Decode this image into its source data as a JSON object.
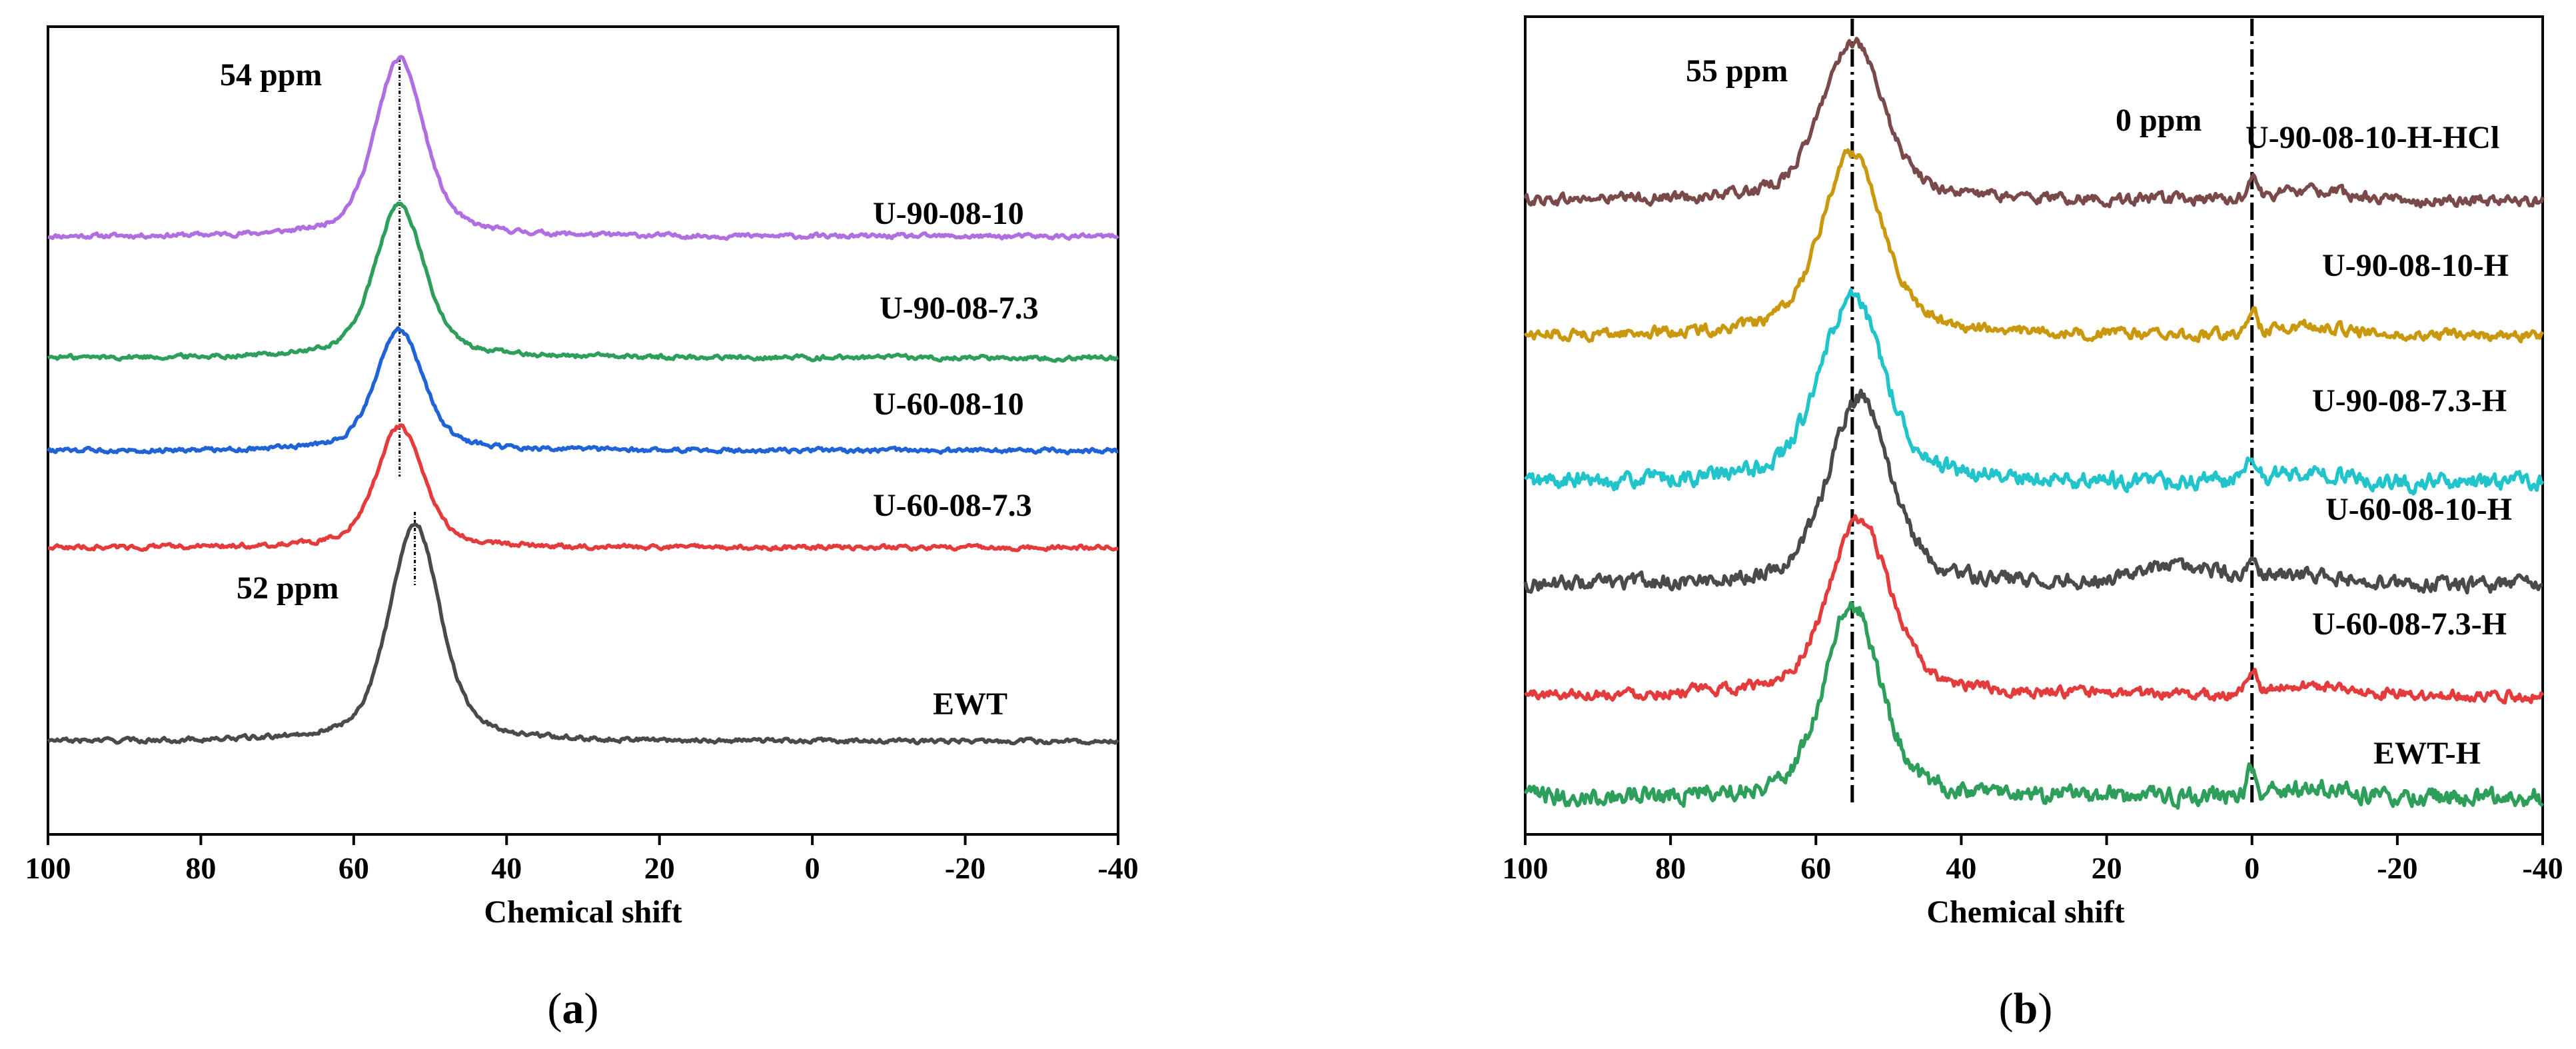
{
  "chart_data": [
    {
      "type": "line",
      "panel_label": "a",
      "xlabel": "Chemical shift",
      "ylabel": "",
      "xlim": [
        100,
        -40
      ],
      "xticks": [
        100,
        80,
        60,
        40,
        20,
        0,
        -20,
        -40
      ],
      "xtick_labels": [
        "100",
        "80",
        "60",
        "40",
        "20",
        "0",
        "-20",
        "-40"
      ],
      "grid": false,
      "annotations": [
        {
          "text": "54 ppm",
          "x": 54,
          "dashed": true
        },
        {
          "text": "52 ppm",
          "x": 52,
          "dashed": true
        }
      ],
      "series": [
        {
          "name": "U-90-08-10",
          "color": "#b06ee0",
          "peak_x": 54,
          "peak_width": 4.2,
          "baseline_level": 0.74,
          "peak_height": 0.22,
          "noise": 0.0025
        },
        {
          "name": "U-90-08-7.3",
          "color": "#2e9e5b",
          "peak_x": 54,
          "peak_width": 4.2,
          "baseline_level": 0.59,
          "peak_height": 0.19,
          "noise": 0.0025
        },
        {
          "name": "U-60-08-10",
          "color": "#1f63d6",
          "peak_x": 54,
          "peak_width": 4.0,
          "baseline_level": 0.475,
          "peak_height": 0.15,
          "noise": 0.0025
        },
        {
          "name": "U-60-08-7.3",
          "color": "#e43c3c",
          "peak_x": 54,
          "peak_width": 4.0,
          "baseline_level": 0.355,
          "peak_height": 0.15,
          "noise": 0.0025
        },
        {
          "name": "EWT",
          "color": "#4a4a4a",
          "peak_x": 52,
          "peak_width": 4.3,
          "baseline_level": 0.115,
          "peak_height": 0.27,
          "noise": 0.0025
        }
      ]
    },
    {
      "type": "line",
      "panel_label": "b",
      "xlabel": "Chemical shift",
      "ylabel": "",
      "xlim": [
        100,
        -40
      ],
      "xticks": [
        100,
        80,
        60,
        40,
        20,
        0,
        -20,
        -40
      ],
      "xtick_labels": [
        "100",
        "80",
        "60",
        "40",
        "20",
        "0",
        "-20",
        "-40"
      ],
      "grid": false,
      "annotations": [
        {
          "text": "55 ppm",
          "x": 55,
          "dashed": true
        },
        {
          "text": "0 ppm",
          "x": 0,
          "dashed": true
        }
      ],
      "series": [
        {
          "name": "U-90-08-10-H-HCl",
          "color": "#7a4a4a",
          "peak_x": 55,
          "peak_width": 5.5,
          "baseline_level": 0.775,
          "peak_height": 0.195,
          "noise": 0.006
        },
        {
          "name": "U-90-08-10-H",
          "color": "#c9980c",
          "peak_x": 55,
          "peak_width": 5.5,
          "baseline_level": 0.61,
          "peak_height": 0.225,
          "noise": 0.006
        },
        {
          "name": "U-90-08-7.3-H",
          "color": "#22c4cc",
          "peak_x": 55,
          "peak_width": 5.8,
          "baseline_level": 0.43,
          "peak_height": 0.225,
          "noise": 0.009
        },
        {
          "name": "U-60-08-10-H",
          "color": "#4a4a4a",
          "peak_x": 54,
          "peak_width": 5.5,
          "baseline_level": 0.305,
          "peak_height": 0.23,
          "noise": 0.008
        },
        {
          "name": "U-60-08-7.3-H",
          "color": "#e43c3c",
          "peak_x": 54,
          "peak_width": 5.5,
          "baseline_level": 0.17,
          "peak_height": 0.215,
          "noise": 0.006
        },
        {
          "name": "EWT-H",
          "color": "#2e9e5b",
          "peak_x": 55,
          "peak_width": 5.0,
          "baseline_level": 0.045,
          "peak_height": 0.235,
          "noise": 0.01
        }
      ]
    }
  ]
}
